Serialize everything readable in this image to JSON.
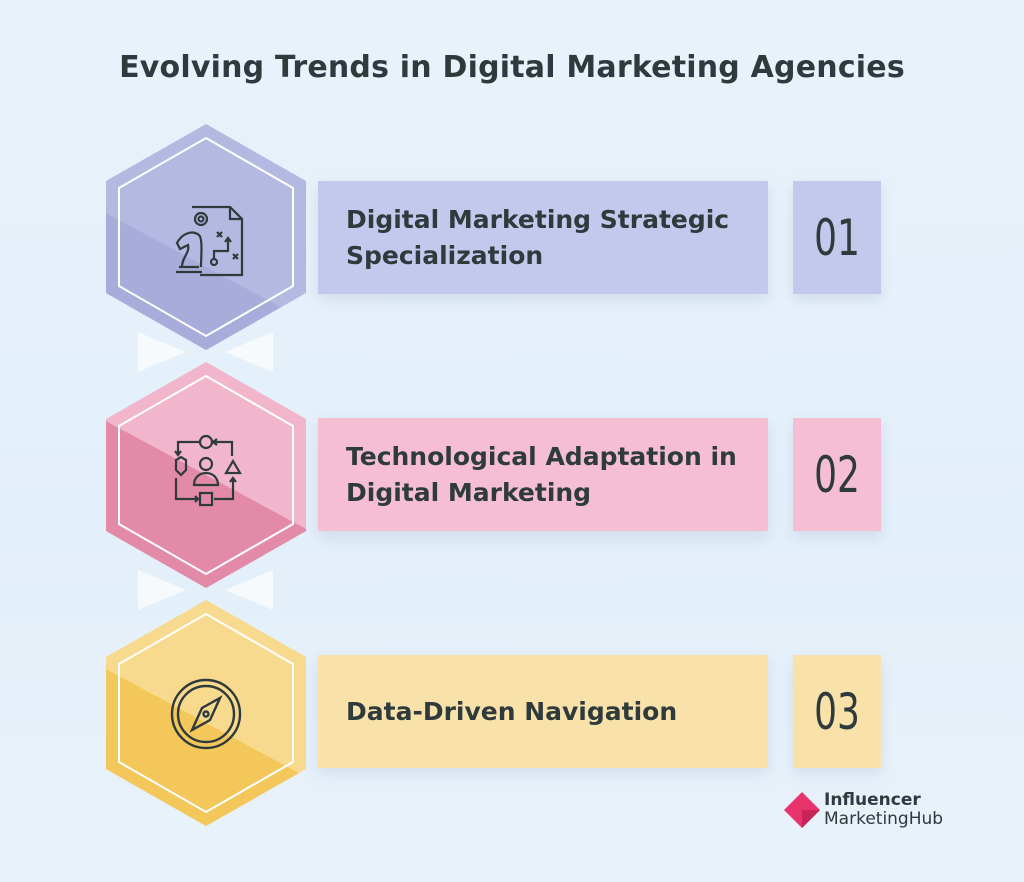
{
  "title": "Evolving Trends in Digital Marketing Agencies",
  "items": [
    {
      "label_line1": "Digital Marketing Strategic",
      "label_line2": "Specialization",
      "number": "01",
      "icon": "strategy-chess-document-icon",
      "hex_color": "#b4b9e2",
      "hex_dark": "#a7acda",
      "box_color": "#c4c8ec"
    },
    {
      "label_line1": "Technological Adaptation in",
      "label_line2": "Digital Marketing",
      "number": "02",
      "icon": "user-workflow-shapes-icon",
      "hex_color": "#f2b6cc",
      "hex_dark": "#e28aa8",
      "box_color": "#f5bed2"
    },
    {
      "label_line1": "Data-Driven Navigation",
      "label_line2": "",
      "number": "03",
      "icon": "compass-icon",
      "hex_color": "#f8da8e",
      "hex_dark": "#f4c75a",
      "box_color": "#f9e2aa"
    }
  ],
  "logo": {
    "line1": "Influencer",
    "line2": "MarketingHub",
    "color": "#e8336d"
  }
}
